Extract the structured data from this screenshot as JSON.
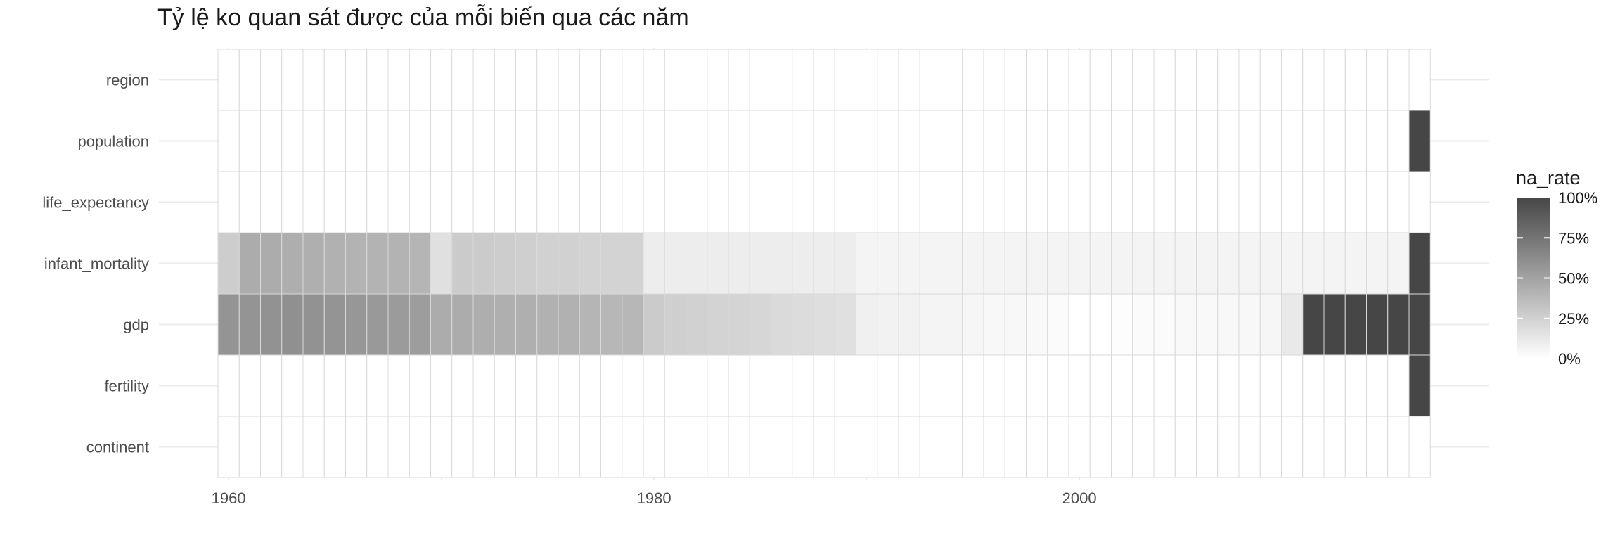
{
  "chart_data": {
    "type": "heatmap",
    "title": "Tỷ lệ ko quan sát được của mỗi biến qua các năm",
    "xlabel": "",
    "ylabel": "",
    "x_start_year": 1960,
    "x_end_year": 2016,
    "x_ticks": [
      1960,
      1980,
      2000
    ],
    "x_tick_labels": [
      "1960",
      "1980",
      "2000"
    ],
    "y_categories": [
      "region",
      "population",
      "life_expectancy",
      "infant_mortality",
      "gdp",
      "fertility",
      "continent"
    ],
    "legend": {
      "title": "na_rate",
      "position": "right",
      "ticks": [
        1.0,
        0.75,
        0.5,
        0.25,
        0.0
      ],
      "tick_labels": [
        "100%",
        "75%",
        "50%",
        "25%",
        "0%"
      ],
      "color_low": "#ffffff",
      "color_high": "#464646"
    },
    "grid": true,
    "rows": [
      {
        "name": "region",
        "values": [
          0,
          0,
          0,
          0,
          0,
          0,
          0,
          0,
          0,
          0,
          0,
          0,
          0,
          0,
          0,
          0,
          0,
          0,
          0,
          0,
          0,
          0,
          0,
          0,
          0,
          0,
          0,
          0,
          0,
          0,
          0,
          0,
          0,
          0,
          0,
          0,
          0,
          0,
          0,
          0,
          0,
          0,
          0,
          0,
          0,
          0,
          0,
          0,
          0,
          0,
          0,
          0,
          0,
          0,
          0,
          0,
          0
        ]
      },
      {
        "name": "population",
        "values": [
          0,
          0,
          0,
          0,
          0,
          0,
          0,
          0,
          0,
          0,
          0,
          0,
          0,
          0,
          0,
          0,
          0,
          0,
          0,
          0,
          0,
          0,
          0,
          0,
          0,
          0,
          0,
          0,
          0,
          0,
          0,
          0,
          0,
          0,
          0,
          0,
          0,
          0,
          0,
          0,
          0,
          0,
          0,
          0,
          0,
          0,
          0,
          0,
          0,
          0,
          0,
          0,
          0,
          0,
          0,
          0,
          1
        ]
      },
      {
        "name": "life_expectancy",
        "values": [
          0,
          0,
          0,
          0,
          0,
          0,
          0,
          0,
          0,
          0,
          0,
          0,
          0,
          0,
          0,
          0,
          0,
          0,
          0,
          0,
          0,
          0,
          0,
          0,
          0,
          0,
          0,
          0,
          0,
          0,
          0,
          0,
          0,
          0,
          0,
          0,
          0,
          0,
          0,
          0,
          0,
          0,
          0,
          0,
          0,
          0,
          0,
          0,
          0,
          0,
          0,
          0,
          0,
          0,
          0,
          0,
          0
        ]
      },
      {
        "name": "infant_mortality",
        "values": [
          0.27,
          0.45,
          0.45,
          0.44,
          0.43,
          0.42,
          0.41,
          0.41,
          0.41,
          0.4,
          0.17,
          0.28,
          0.28,
          0.27,
          0.26,
          0.25,
          0.25,
          0.24,
          0.24,
          0.24,
          0.1,
          0.1,
          0.1,
          0.1,
          0.1,
          0.1,
          0.1,
          0.1,
          0.1,
          0.1,
          0.06,
          0.06,
          0.06,
          0.06,
          0.06,
          0.06,
          0.06,
          0.06,
          0.06,
          0.06,
          0.06,
          0.06,
          0.06,
          0.06,
          0.06,
          0.06,
          0.06,
          0.06,
          0.06,
          0.06,
          0.06,
          0.06,
          0.06,
          0.06,
          0.06,
          0.06,
          1
        ]
      },
      {
        "name": "gdp",
        "values": [
          0.58,
          0.58,
          0.59,
          0.6,
          0.59,
          0.58,
          0.56,
          0.55,
          0.54,
          0.53,
          0.45,
          0.45,
          0.44,
          0.43,
          0.43,
          0.42,
          0.42,
          0.4,
          0.39,
          0.39,
          0.28,
          0.26,
          0.25,
          0.24,
          0.23,
          0.22,
          0.2,
          0.19,
          0.18,
          0.17,
          0.08,
          0.07,
          0.07,
          0.06,
          0.06,
          0.05,
          0.04,
          0.04,
          0.03,
          0.02,
          0.0,
          0.0,
          0.01,
          0.02,
          0.02,
          0.03,
          0.03,
          0.04,
          0.04,
          0.05,
          0.12,
          1,
          1,
          1,
          1,
          1,
          1
        ]
      },
      {
        "name": "fertility",
        "values": [
          0,
          0,
          0,
          0,
          0,
          0,
          0,
          0,
          0,
          0,
          0,
          0,
          0,
          0,
          0,
          0,
          0,
          0,
          0,
          0,
          0,
          0,
          0,
          0,
          0,
          0,
          0,
          0,
          0,
          0,
          0,
          0,
          0,
          0,
          0,
          0,
          0,
          0,
          0,
          0,
          0,
          0,
          0,
          0,
          0,
          0,
          0,
          0,
          0,
          0,
          0,
          0,
          0,
          0,
          0,
          0,
          1
        ]
      },
      {
        "name": "continent",
        "values": [
          0,
          0,
          0,
          0,
          0,
          0,
          0,
          0,
          0,
          0,
          0,
          0,
          0,
          0,
          0,
          0,
          0,
          0,
          0,
          0,
          0,
          0,
          0,
          0,
          0,
          0,
          0,
          0,
          0,
          0,
          0,
          0,
          0,
          0,
          0,
          0,
          0,
          0,
          0,
          0,
          0,
          0,
          0,
          0,
          0,
          0,
          0,
          0,
          0,
          0,
          0,
          0,
          0,
          0,
          0,
          0,
          0
        ]
      }
    ]
  }
}
